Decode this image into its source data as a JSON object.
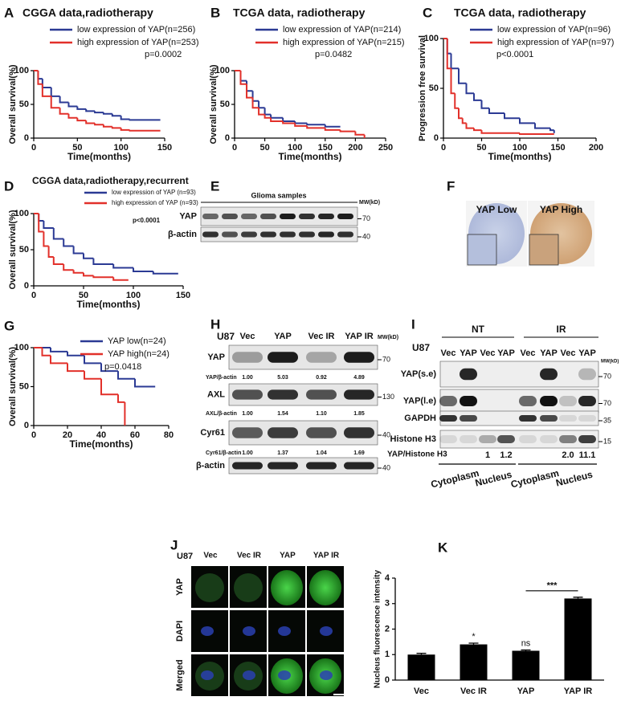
{
  "chart_data": [
    {
      "panel": "A",
      "type": "step",
      "title": "CGGA data,radiotherapy",
      "xlabel": "Time(months)",
      "ylabel": "Overall survival(%)",
      "xlim": [
        0,
        150
      ],
      "ylim": [
        0,
        100
      ],
      "xticks": [
        0,
        50,
        100,
        150
      ],
      "yticks": [
        0,
        50,
        100
      ],
      "series": [
        {
          "name": "low expression of YAP(n=256)",
          "color": "#2b3a94",
          "x": [
            0,
            5,
            10,
            20,
            30,
            40,
            50,
            60,
            70,
            80,
            90,
            100,
            110,
            145
          ],
          "values": [
            100,
            88,
            75,
            62,
            53,
            47,
            43,
            40,
            38,
            36,
            33,
            28,
            27,
            27
          ]
        },
        {
          "name": "high expression of YAP(n=253)",
          "color": "#e2302a",
          "x": [
            0,
            5,
            10,
            20,
            30,
            40,
            50,
            60,
            70,
            80,
            90,
            100,
            110,
            145
          ],
          "values": [
            100,
            80,
            62,
            45,
            36,
            30,
            26,
            22,
            20,
            17,
            15,
            12,
            11,
            11
          ]
        }
      ],
      "annotation": "p=0.0002"
    },
    {
      "panel": "B",
      "type": "step",
      "title": "TCGA data, radiotherapy",
      "xlabel": "Time(months)",
      "ylabel": "Overall survival(%)",
      "xlim": [
        0,
        250
      ],
      "ylim": [
        0,
        100
      ],
      "xticks": [
        0,
        50,
        100,
        150,
        200,
        250
      ],
      "yticks": [
        0,
        50,
        100
      ],
      "series": [
        {
          "name": "low expression of YAP(n=214)",
          "color": "#2b3a94",
          "x": [
            0,
            10,
            20,
            30,
            40,
            50,
            60,
            80,
            100,
            120,
            150,
            175
          ],
          "values": [
            100,
            85,
            70,
            55,
            45,
            35,
            30,
            25,
            22,
            20,
            17,
            17
          ]
        },
        {
          "name": "high expression of YAP(n=215)",
          "color": "#e2302a",
          "x": [
            0,
            10,
            20,
            30,
            40,
            50,
            60,
            80,
            100,
            120,
            150,
            175,
            200,
            215
          ],
          "values": [
            100,
            80,
            60,
            45,
            35,
            30,
            25,
            22,
            18,
            15,
            12,
            10,
            5,
            0
          ]
        }
      ],
      "annotation": "p=0.0482"
    },
    {
      "panel": "C",
      "type": "step",
      "title": "TCGA data, radiotherapy",
      "xlabel": "Time(months)",
      "ylabel": "Progression free survival",
      "xlim": [
        0,
        200
      ],
      "ylim": [
        0,
        100
      ],
      "xticks": [
        0,
        50,
        100,
        150,
        200
      ],
      "yticks": [
        0,
        50,
        100
      ],
      "series": [
        {
          "name": "low expression of YAP(n=96)",
          "color": "#2b3a94",
          "x": [
            0,
            5,
            10,
            20,
            30,
            40,
            50,
            60,
            80,
            100,
            120,
            140,
            145
          ],
          "values": [
            100,
            85,
            70,
            55,
            45,
            38,
            30,
            25,
            20,
            15,
            10,
            8,
            5
          ]
        },
        {
          "name": "high expression of YAP(n=97)",
          "color": "#e2302a",
          "x": [
            0,
            5,
            10,
            15,
            20,
            25,
            30,
            40,
            50,
            60,
            100,
            145
          ],
          "values": [
            100,
            70,
            45,
            30,
            20,
            15,
            10,
            8,
            5,
            5,
            4,
            4
          ]
        }
      ],
      "annotation": "p<0.0001"
    },
    {
      "panel": "D",
      "type": "step",
      "title": "CGGA data,radiotherapy,recurrent",
      "xlabel": "Time(months)",
      "ylabel": "Overall survival(%)",
      "xlim": [
        0,
        150
      ],
      "ylim": [
        0,
        100
      ],
      "xticks": [
        0,
        50,
        100,
        150
      ],
      "yticks": [
        0,
        50,
        100
      ],
      "series": [
        {
          "name": "low expression of YAP (n=93)",
          "color": "#2b3a94",
          "x": [
            0,
            5,
            10,
            20,
            30,
            40,
            50,
            60,
            80,
            100,
            120,
            145
          ],
          "values": [
            100,
            90,
            80,
            65,
            55,
            45,
            38,
            30,
            25,
            20,
            17,
            17
          ]
        },
        {
          "name": "high expression of YAP (n=93)",
          "color": "#e2302a",
          "x": [
            0,
            5,
            10,
            15,
            20,
            30,
            40,
            50,
            60,
            80,
            95
          ],
          "values": [
            100,
            75,
            55,
            40,
            30,
            22,
            18,
            14,
            12,
            8,
            8
          ]
        }
      ],
      "annotation": "p<0.0001"
    },
    {
      "panel": "G",
      "type": "step",
      "xlabel": "Time(months)",
      "ylabel": "Overall survival(%)",
      "xlim": [
        0,
        80
      ],
      "ylim": [
        0,
        100
      ],
      "xticks": [
        0,
        20,
        40,
        60,
        80
      ],
      "yticks": [
        0,
        50,
        100
      ],
      "series": [
        {
          "name": "YAP low(n=24)",
          "color": "#2b3a94",
          "x": [
            0,
            10,
            20,
            30,
            40,
            50,
            60,
            72
          ],
          "values": [
            100,
            95,
            90,
            80,
            70,
            60,
            50,
            50
          ]
        },
        {
          "name": "YAP high(n=24)",
          "color": "#e2302a",
          "x": [
            0,
            5,
            10,
            20,
            30,
            40,
            50,
            54
          ],
          "values": [
            100,
            90,
            80,
            70,
            60,
            40,
            30,
            0
          ]
        }
      ],
      "annotation": "p=0.0418"
    },
    {
      "panel": "K",
      "type": "bar",
      "ylabel": "Nucleus fluorescence intensity",
      "categories": [
        "Vec",
        "Vec IR",
        "YAP",
        "YAP IR"
      ],
      "values": [
        1.0,
        1.4,
        1.15,
        3.2
      ],
      "errors": [
        0.05,
        0.05,
        0.03,
        0.05
      ],
      "color": "#000000",
      "ylim": [
        0,
        4
      ],
      "yticks": [
        0,
        1,
        2,
        3,
        4
      ],
      "significance": [
        null,
        "*",
        "ns",
        "***"
      ]
    }
  ],
  "panels": {
    "E": {
      "label": "E",
      "header": "Glioma samples",
      "mw_title": "MW(kD)",
      "rows": [
        {
          "name": "YAP",
          "mw": "70"
        },
        {
          "name": "β-actin",
          "mw": "40"
        }
      ]
    },
    "F": {
      "label": "F",
      "images": [
        "YAP Low",
        "YAP High"
      ]
    },
    "H": {
      "label": "H",
      "cell": "U87",
      "mw_title": "MW(kD)",
      "columns": [
        "Vec",
        "YAP",
        "Vec IR",
        "YAP IR"
      ],
      "rows": [
        {
          "name": "YAP",
          "mw": "70",
          "ratio_label": "YAP/β-actin",
          "ratios": [
            "1.00",
            "5.03",
            "0.92",
            "4.89"
          ]
        },
        {
          "name": "AXL",
          "mw": "130",
          "ratio_label": "AXL/β-actin",
          "ratios": [
            "1.00",
            "1.54",
            "1.10",
            "1.85"
          ]
        },
        {
          "name": "Cyr61",
          "mw": "40",
          "ratio_label": "Cyr61/β-actin",
          "ratios": [
            "1.00",
            "1.37",
            "1.04",
            "1.69"
          ]
        },
        {
          "name": "β-actin",
          "mw": "40"
        }
      ]
    },
    "I": {
      "label": "I",
      "cell": "U87",
      "mw_title": "MW(kD)",
      "groups": [
        "NT",
        "IR"
      ],
      "columns": [
        "Vec",
        "YAP",
        "Vec",
        "YAP",
        "Vec",
        "YAP",
        "Vec",
        "YAP"
      ],
      "rows": [
        {
          "name": "YAP(s.e)",
          "mw": "70"
        },
        {
          "name": "YAP(l.e)",
          "mw": "70"
        },
        {
          "name": "GAPDH",
          "mw": "35"
        },
        {
          "name": "Histone H3",
          "mw": "15"
        }
      ],
      "ratio_label": "YAP/Histone H3",
      "ratios": [
        null,
        null,
        "1",
        "1.2",
        null,
        null,
        "2.0",
        "11.1"
      ],
      "fractions": [
        "Cytoplasm",
        "Nucleus",
        "Cytoplasm",
        "Nucleus"
      ]
    },
    "J": {
      "label": "J",
      "cell": "U87",
      "columns": [
        "Vec",
        "Vec IR",
        "YAP",
        "YAP IR"
      ],
      "rows": [
        "YAP",
        "DAPI",
        "Merged"
      ]
    }
  }
}
